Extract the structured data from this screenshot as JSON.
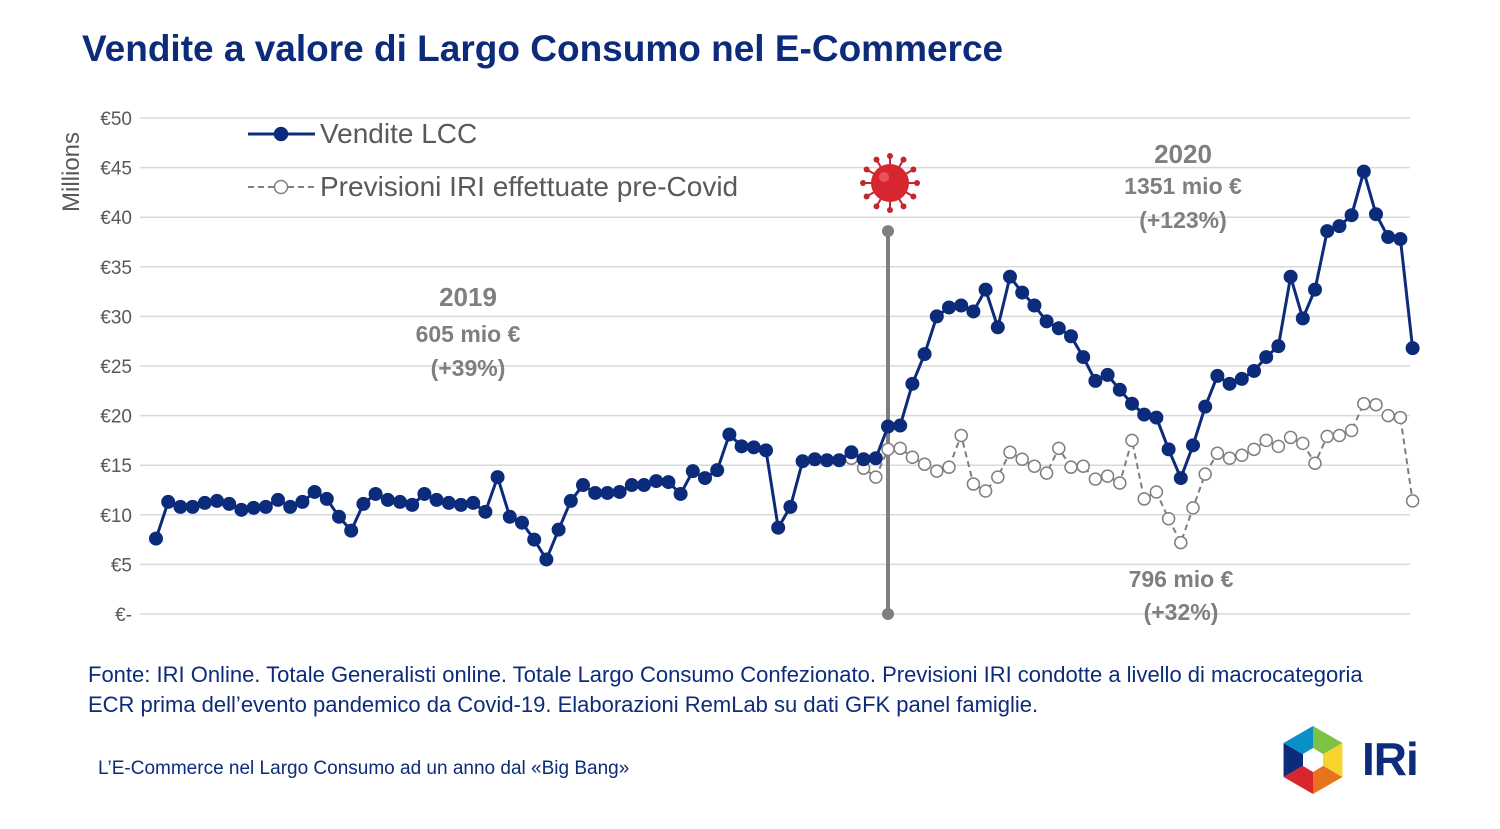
{
  "title": "Vendite a valore di Largo Consumo nel E-Commerce",
  "chart_data": {
    "type": "line",
    "ylabel": "Millions",
    "ylim": [
      0,
      50
    ],
    "yticks": [
      0,
      5,
      10,
      15,
      20,
      25,
      30,
      35,
      40,
      45,
      50
    ],
    "ytick_labels": [
      "€-",
      "€5",
      "€10",
      "€15",
      "€20",
      "€25",
      "€30",
      "€35",
      "€40",
      "€45",
      "€50"
    ],
    "grid": true,
    "legend_position": "top-left",
    "series": [
      {
        "name": "Vendite LCC",
        "color": "#0c2b7a",
        "style": "solid-filled-markers",
        "x": [
          0,
          1,
          2,
          3,
          4,
          5,
          6,
          7,
          8,
          9,
          10,
          11,
          12,
          13,
          14,
          15,
          16,
          17,
          18,
          19,
          20,
          21,
          22,
          23,
          24,
          25,
          26,
          27,
          28,
          29,
          30,
          31,
          32,
          33,
          34,
          35,
          36,
          37,
          38,
          39,
          40,
          41,
          42,
          43,
          44,
          45,
          46,
          47,
          48,
          49,
          50,
          51,
          52,
          53,
          54,
          55,
          56,
          57,
          58,
          59,
          60,
          61,
          62,
          63,
          64,
          65,
          66,
          67,
          68,
          69,
          70,
          71,
          72,
          73,
          74,
          75,
          76,
          77,
          78,
          79,
          80,
          81,
          82,
          83,
          84,
          85,
          86,
          87,
          88,
          89,
          90,
          91,
          92,
          93,
          94,
          95,
          96,
          97,
          98,
          99,
          100,
          101,
          102,
          103
        ],
        "values": [
          7.6,
          11.3,
          10.8,
          10.8,
          11.2,
          11.4,
          11.1,
          10.5,
          10.7,
          10.8,
          11.5,
          10.8,
          11.3,
          12.3,
          11.6,
          9.8,
          8.4,
          11.1,
          12.1,
          11.5,
          11.3,
          11.0,
          12.1,
          11.5,
          11.2,
          11.0,
          11.2,
          10.3,
          13.8,
          9.8,
          9.2,
          7.5,
          5.5,
          8.5,
          11.4,
          13.0,
          12.2,
          12.2,
          12.3,
          13.0,
          13.0,
          13.4,
          13.3,
          12.1,
          14.4,
          13.7,
          14.5,
          18.1,
          16.9,
          16.8,
          16.5,
          8.7,
          10.8,
          15.4,
          15.6,
          15.5,
          15.5,
          16.3,
          15.6,
          15.7,
          18.9,
          19.0,
          23.2,
          26.2,
          30.0,
          30.9,
          31.1,
          30.5,
          32.7,
          28.9,
          34.0,
          32.4,
          31.1,
          29.5,
          28.8,
          28.0,
          25.9,
          23.5,
          24.1,
          22.6,
          21.2,
          20.1,
          19.8,
          16.6,
          13.7,
          17.0,
          20.9,
          24.0,
          23.2,
          23.7,
          24.5,
          25.9,
          27.0,
          34.0,
          29.8,
          32.7,
          38.6,
          39.1,
          40.2,
          44.6,
          40.3,
          38.0,
          37.8,
          26.8
        ]
      },
      {
        "name": "Previsioni IRI effettuate pre-Covid",
        "color": "#7f7f7f",
        "style": "dashed-open-markers",
        "x": [
          57,
          58,
          59,
          60,
          61,
          62,
          63,
          64,
          65,
          66,
          67,
          68,
          69,
          70,
          71,
          72,
          73,
          74,
          75,
          76,
          77,
          78,
          79,
          80,
          81,
          82,
          83,
          84,
          85,
          86,
          87,
          88,
          89,
          90,
          91,
          92,
          93,
          94,
          95,
          96,
          97,
          98,
          99,
          100,
          101,
          102,
          103
        ],
        "values": [
          15.7,
          14.7,
          13.8,
          16.6,
          16.7,
          15.8,
          15.1,
          14.4,
          14.8,
          18.0,
          13.1,
          12.4,
          13.8,
          16.3,
          15.6,
          14.9,
          14.2,
          16.7,
          14.8,
          14.9,
          13.6,
          13.9,
          13.2,
          17.5,
          11.6,
          12.3,
          9.6,
          7.2,
          10.7,
          14.1,
          16.2,
          15.7,
          16.0,
          16.6,
          17.5,
          16.9,
          17.8,
          17.2,
          15.2,
          17.9,
          18.0,
          18.5,
          21.2,
          21.1,
          20.0,
          19.8,
          11.4
        ]
      }
    ],
    "covid_marker": {
      "x": 60,
      "ymin": 0,
      "ymax": 38.6
    },
    "annotations": [
      {
        "id": "y2019",
        "lines": [
          "2019",
          "605 mio €",
          "(+39%)"
        ]
      },
      {
        "id": "y2020",
        "lines": [
          "2020",
          "1351 mio €",
          "(+123%)"
        ]
      },
      {
        "id": "forecast",
        "lines": [
          "796 mio €",
          "(+32%)"
        ]
      }
    ]
  },
  "source_note": "Fonte: IRI Online. Totale Generalisti online. Totale Largo Consumo Confezionato. Previsioni IRI condotte a livello di macrocategoria ECR prima dell’evento pandemico da Covid-19. Elaborazioni RemLab su dati GFK panel famiglie.",
  "footer": "L’E-Commerce nel Largo Consumo ad un anno dal «Big Bang»",
  "logo": {
    "text": "IRi",
    "colors": [
      "#7dc242",
      "#f6d32d",
      "#e8731d",
      "#d7262f",
      "#0c2b7a",
      "#0b8fc7"
    ]
  }
}
